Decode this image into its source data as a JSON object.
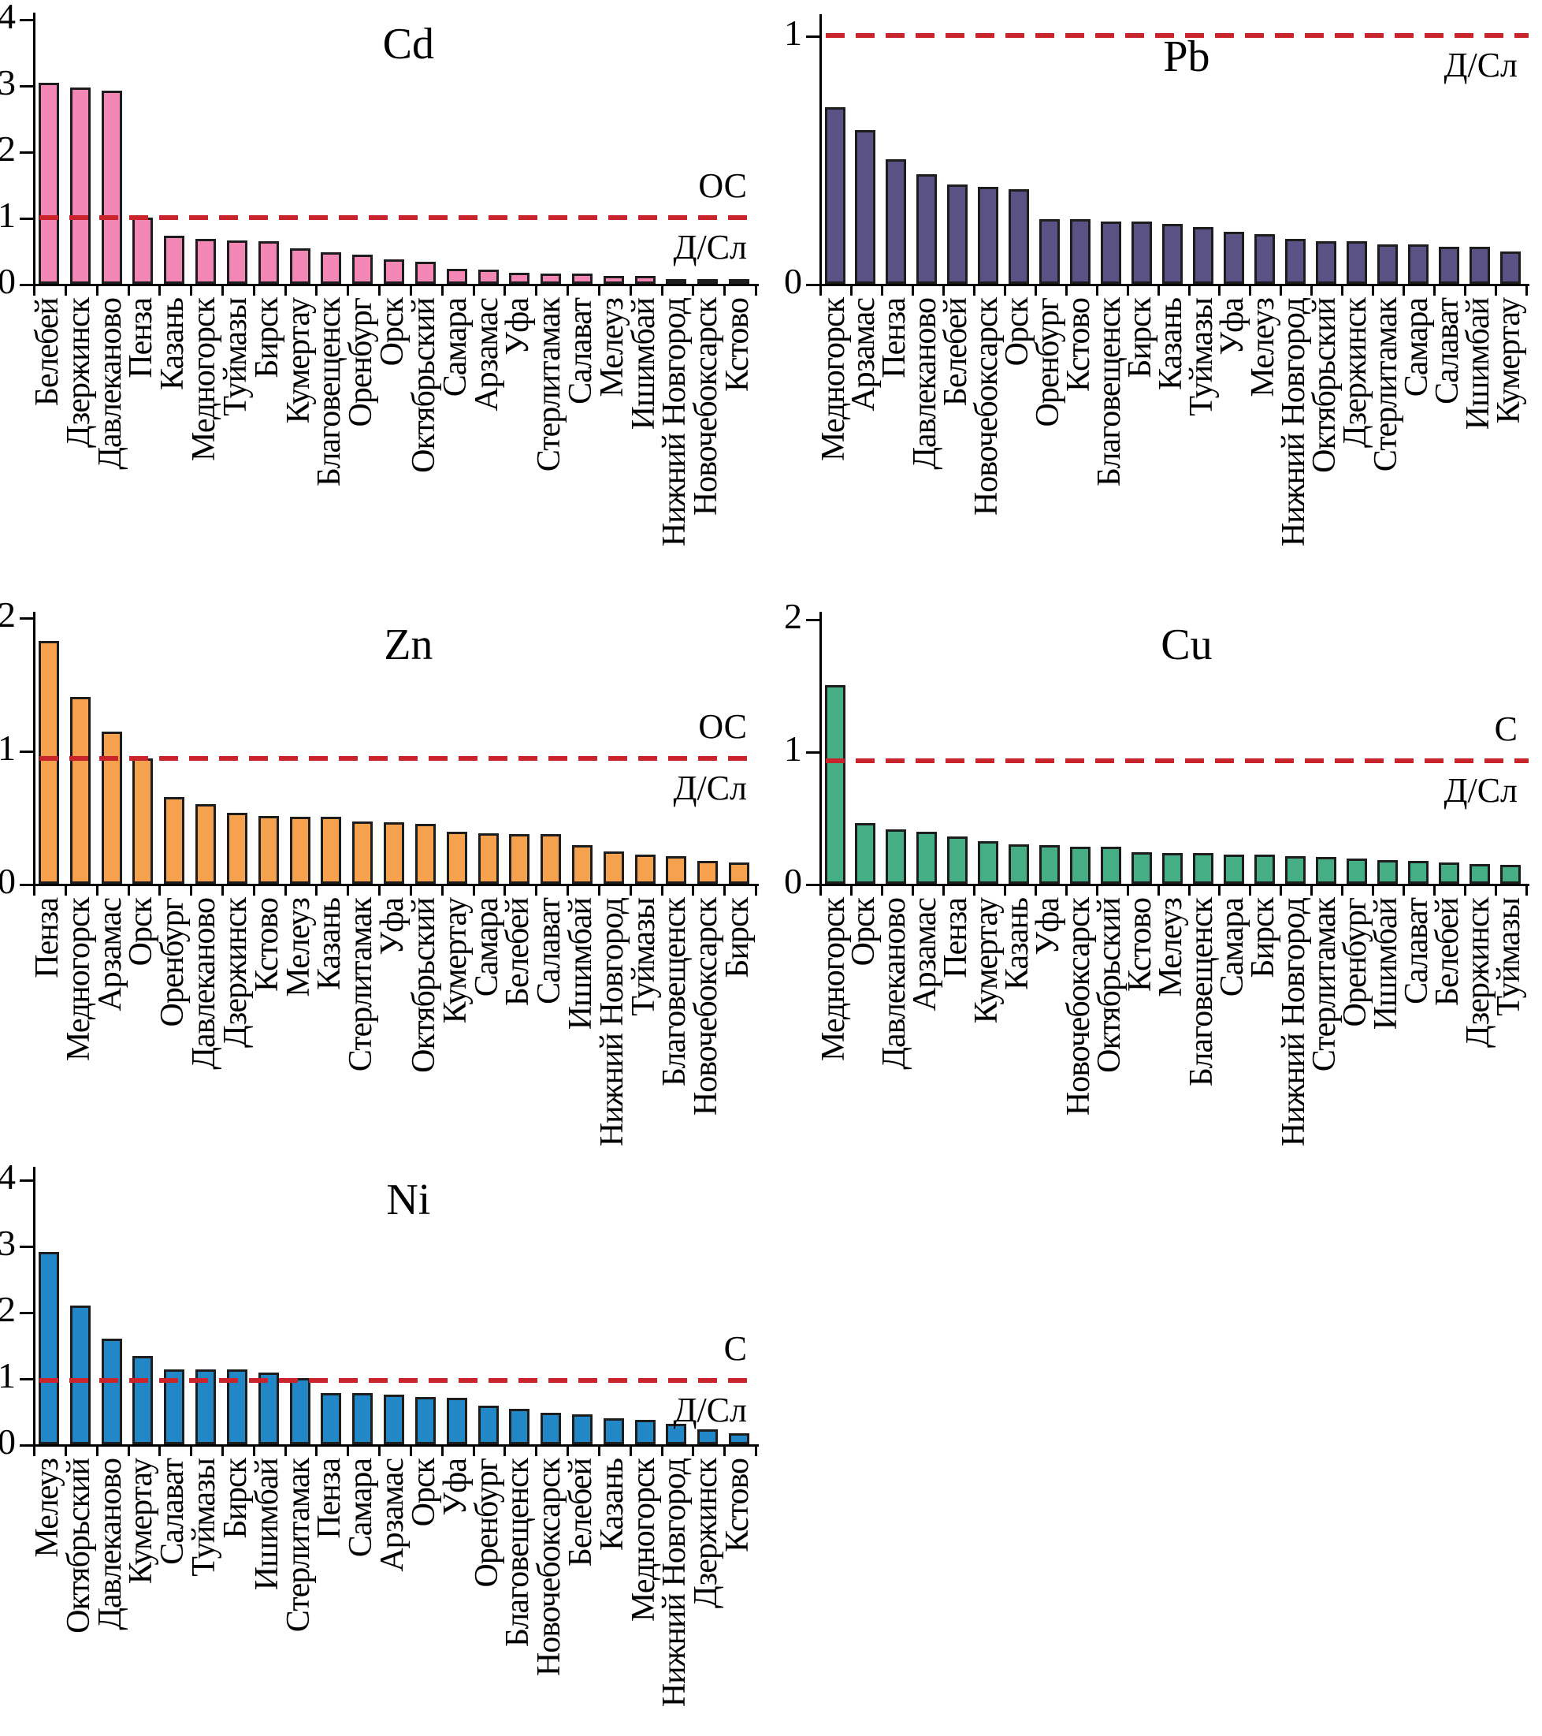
{
  "figure": {
    "background": "#ffffff",
    "ref_line_color": "#c9242b",
    "bar_outline_color": "#1d1d1d"
  },
  "chart_data": [
    {
      "id": "cd",
      "type": "bar",
      "title": "Cd",
      "bar_color": "#f287b5",
      "ylim": [
        0,
        4
      ],
      "yticks": [
        0,
        1,
        2,
        3,
        4
      ],
      "ref_line": {
        "value": 1,
        "style": "dashed",
        "label_above": "ОС",
        "label_below": "Д/Сл"
      },
      "categories": [
        "Белебей",
        "Дзержинск",
        "Давлеканово",
        "Пенза",
        "Казань",
        "Медногорск",
        "Туймазы",
        "Бирск",
        "Кумертау",
        "Благовещенск",
        "Оренбург",
        "Орск",
        "Октябрьский",
        "Самара",
        "Арзамас",
        "Уфа",
        "Стерлитамак",
        "Салават",
        "Мелеуз",
        "Ишимбай",
        "Нижний Новгород",
        "Новочебоксарск",
        "Кстово"
      ],
      "values": [
        3.03,
        2.97,
        2.92,
        1.0,
        0.73,
        0.68,
        0.65,
        0.64,
        0.53,
        0.48,
        0.44,
        0.37,
        0.33,
        0.23,
        0.21,
        0.17,
        0.16,
        0.16,
        0.12,
        0.12,
        0.07,
        0.07,
        0.07
      ]
    },
    {
      "id": "pb",
      "type": "bar",
      "title": "Pb",
      "bar_color": "#5a5185",
      "ylim": [
        0,
        1
      ],
      "yticks": [
        0,
        1
      ],
      "ref_line": {
        "value": 1,
        "style": "dashed",
        "label_above": "",
        "label_below": "Д/Сл"
      },
      "categories": [
        "Медногорск",
        "Арзамас",
        "Пенза",
        "Давлеканово",
        "Белебей",
        "Новочебоксарск",
        "Орск",
        "Оренбург",
        "Кстово",
        "Благовещенск",
        "Бирск",
        "Казань",
        "Туймазы",
        "Уфа",
        "Мелеуз",
        "Нижний Новгород",
        "Октябрьский",
        "Дзержинск",
        "Стерлитамак",
        "Самара",
        "Салават",
        "Ишимбай",
        "Кумертау"
      ],
      "values": [
        0.71,
        0.62,
        0.5,
        0.44,
        0.4,
        0.39,
        0.38,
        0.26,
        0.26,
        0.25,
        0.25,
        0.24,
        0.23,
        0.21,
        0.2,
        0.18,
        0.17,
        0.17,
        0.16,
        0.16,
        0.15,
        0.15,
        0.13
      ]
    },
    {
      "id": "zn",
      "type": "bar",
      "title": "Zn",
      "bar_color": "#f6a14e",
      "ylim": [
        0,
        2
      ],
      "yticks": [
        0,
        1,
        2
      ],
      "ref_line": {
        "value": 1,
        "style": "dashed",
        "label_above": "ОС",
        "label_below": "Д/Сл"
      },
      "categories": [
        "Пенза",
        "Медногорск",
        "Арзамас",
        "Орск",
        "Оренбург",
        "Давлеканово",
        "Дзержинск",
        "Кстово",
        "Мелеуз",
        "Казань",
        "Стерлитамак",
        "Уфа",
        "Октябрьский",
        "Кумертау",
        "Самара",
        "Белебей",
        "Салават",
        "Ишимбай",
        "Нижний Новгород",
        "Туймазы",
        "Благовещенск",
        "Новочебоксарск",
        "Бирск"
      ],
      "values": [
        1.82,
        1.4,
        1.14,
        0.94,
        0.65,
        0.6,
        0.53,
        0.51,
        0.5,
        0.5,
        0.47,
        0.46,
        0.45,
        0.39,
        0.38,
        0.37,
        0.37,
        0.29,
        0.24,
        0.22,
        0.21,
        0.17,
        0.16
      ]
    },
    {
      "id": "cu",
      "type": "bar",
      "title": "Cu",
      "bar_color": "#46ae85",
      "ylim": [
        0,
        2
      ],
      "yticks": [
        0,
        1,
        2
      ],
      "ref_line": {
        "value": 1,
        "style": "dashed",
        "label_above": "С",
        "label_below": "Д/Сл"
      },
      "categories": [
        "Медногорск",
        "Орск",
        "Давлеканово",
        "Арзамас",
        "Пенза",
        "Кумертау",
        "Казань",
        "Уфа",
        "Новочебоксарск",
        "Октябрьский",
        "Кстово",
        "Мелеуз",
        "Благовещенск",
        "Самара",
        "Бирск",
        "Нижний Новгород",
        "Стерлитамак",
        "Оренбург",
        "Ишимбай",
        "Салават",
        "Белебей",
        "Дзержинск",
        "Туймазы"
      ],
      "values": [
        1.5,
        0.46,
        0.41,
        0.39,
        0.36,
        0.32,
        0.3,
        0.29,
        0.28,
        0.28,
        0.24,
        0.23,
        0.23,
        0.22,
        0.22,
        0.21,
        0.2,
        0.19,
        0.18,
        0.17,
        0.16,
        0.15,
        0.14
      ]
    },
    {
      "id": "ni",
      "type": "bar",
      "title": "Ni",
      "bar_color": "#2187c6",
      "ylim": [
        0,
        4
      ],
      "yticks": [
        0,
        1,
        2,
        3,
        4
      ],
      "ref_line": {
        "value": 1,
        "style": "dashed",
        "label_above": "С",
        "label_below": "Д/Сл"
      },
      "categories": [
        "Мелеуз",
        "Октябрьский",
        "Давлеканово",
        "Кумертау",
        "Салават",
        "Туймазы",
        "Бирск",
        "Ишимбай",
        "Стерлитамак",
        "Пенза",
        "Самара",
        "Арзамас",
        "Орск",
        "Уфа",
        "Оренбург",
        "Благовещенск",
        "Новочебоксарск",
        "Белебей",
        "Казань",
        "Медногорск",
        "Нижний Новгород",
        "Дзержинск",
        "Кстово"
      ],
      "values": [
        2.9,
        2.1,
        1.6,
        1.33,
        1.13,
        1.13,
        1.13,
        1.08,
        1.0,
        0.77,
        0.77,
        0.75,
        0.71,
        0.7,
        0.58,
        0.54,
        0.48,
        0.45,
        0.39,
        0.37,
        0.31,
        0.23,
        0.17
      ]
    }
  ]
}
